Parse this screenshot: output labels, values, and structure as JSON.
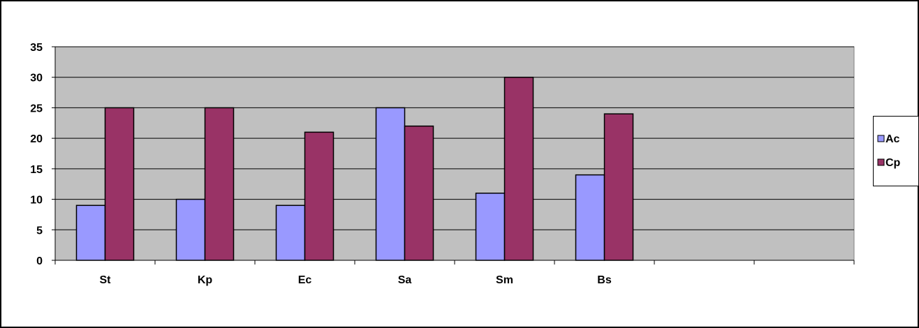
{
  "chart_data": {
    "type": "bar",
    "categories": [
      "St",
      "Kp",
      "Ec",
      "Sa",
      "Sm",
      "Bs",
      "",
      ""
    ],
    "series": [
      {
        "name": "Ac",
        "values": [
          9,
          10,
          9,
          25,
          11,
          14,
          null,
          null
        ],
        "color": "#9999ff"
      },
      {
        "name": "Cp",
        "values": [
          25,
          25,
          21,
          22,
          30,
          24,
          null,
          null
        ],
        "color": "#993366"
      }
    ],
    "ylim": [
      0,
      35
    ],
    "yticks": [
      "0",
      "5",
      "10",
      "15",
      "20",
      "25",
      "30",
      "35"
    ],
    "grid": true,
    "legend": "right",
    "plot_background": "#c0c0c0"
  }
}
